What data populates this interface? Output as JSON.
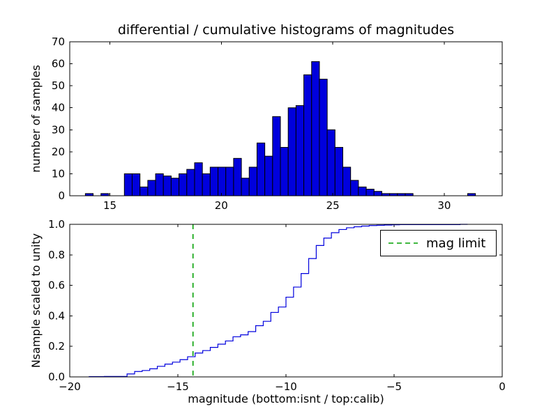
{
  "figure": {
    "background": "#ffffff"
  },
  "chart_data": [
    {
      "type": "bar",
      "subplot": "top",
      "title": "differential / cumulative histograms of magnitudes",
      "ylabel": "number of samples",
      "bar_color": "#0000dd",
      "bar_edge_color": "#000000",
      "bin_start": 13.9,
      "bin_width": 0.35,
      "counts": [
        1,
        0,
        1,
        0,
        0,
        10,
        10,
        4,
        7,
        10,
        9,
        8,
        10,
        12,
        15,
        10,
        13,
        13,
        13,
        17,
        8,
        13,
        24,
        18,
        36,
        22,
        40,
        41,
        55,
        61,
        53,
        30,
        22,
        13,
        7,
        4,
        3,
        2,
        1,
        1,
        1,
        1,
        0,
        0,
        0,
        0,
        0,
        0,
        0,
        1
      ],
      "xlim": [
        13.2,
        32.6
      ],
      "ylim": [
        0,
        70
      ],
      "xticks": [
        15,
        20,
        25,
        30
      ],
      "xticklabels": [
        "15",
        "20",
        "25",
        "30"
      ],
      "yticks": [
        0,
        10,
        20,
        30,
        40,
        50,
        60,
        70
      ],
      "yticklabels": [
        "0",
        "10",
        "20",
        "30",
        "40",
        "50",
        "60",
        "70"
      ]
    },
    {
      "type": "line",
      "subplot": "bottom",
      "description": "cumulative histogram of the top counts, scaled to unity",
      "ylabel": "Nsample scaled to unity",
      "xlabel": "magnitude (bottom:isnt / top:calib)",
      "line_color": "#0000dd",
      "x_offset_from_top_axis": -33,
      "xlim": [
        -20,
        0
      ],
      "ylim": [
        0,
        1
      ],
      "xticks": [
        -20,
        -15,
        -10,
        -5,
        0
      ],
      "xticklabels": [
        "−20",
        "−15",
        "−10",
        "−5",
        "0"
      ],
      "yticks": [
        0,
        0.2,
        0.4,
        0.6,
        0.8,
        1
      ],
      "yticklabels": [
        "0.0",
        "0.2",
        "0.4",
        "0.6",
        "0.8",
        "1.0"
      ],
      "mag_limit": {
        "x": -14.3,
        "color": "#00a000",
        "linestyle": "dashed",
        "label": "mag limit"
      },
      "legend": {
        "position": "upper right",
        "entries": [
          {
            "label": "mag limit",
            "color": "#00a000",
            "linestyle": "dashed"
          }
        ]
      }
    }
  ]
}
